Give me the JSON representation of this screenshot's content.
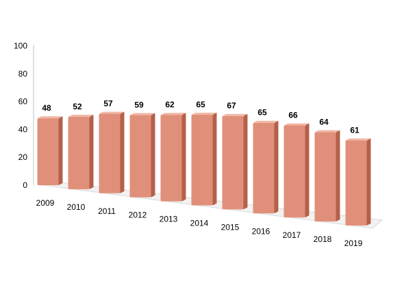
{
  "chart_data": {
    "type": "bar",
    "title": "",
    "xlabel": "",
    "ylabel": "",
    "categories": [
      "2009",
      "2010",
      "2011",
      "2012",
      "2013",
      "2014",
      "2015",
      "2016",
      "2017",
      "2018",
      "2019"
    ],
    "values": [
      48,
      52,
      57,
      59,
      62,
      65,
      67,
      65,
      66,
      64,
      61
    ],
    "data_labels": [
      "48",
      "52",
      "57",
      "59",
      "62",
      "65",
      "67",
      "65",
      "66",
      "64",
      "61"
    ],
    "ylim": [
      0,
      100
    ],
    "yticks": [
      "0",
      "20",
      "40",
      "60",
      "80",
      "100"
    ],
    "grid": false,
    "legend": "none",
    "style": "3d-perspective",
    "colors": {
      "bar_front": "#E0907A",
      "bar_side": "#B5604A",
      "bar_top": "#F2B7A5",
      "floor": "#F2F2F2",
      "axis": "#BFBFBF"
    }
  }
}
